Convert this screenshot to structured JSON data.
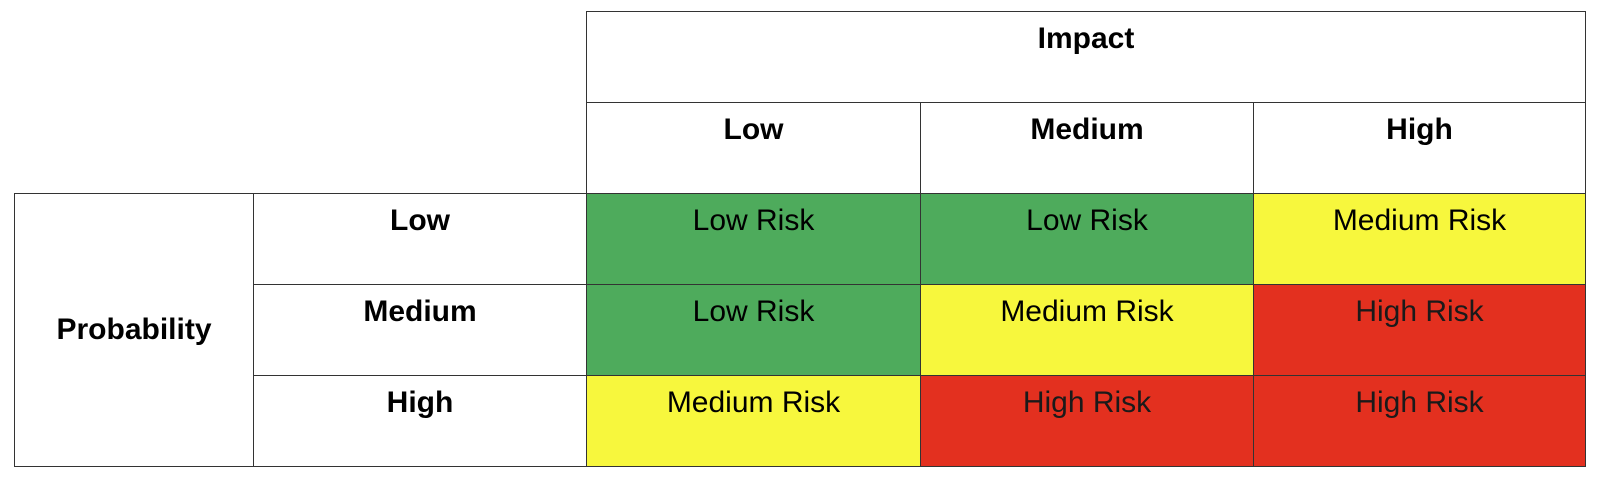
{
  "matrix": {
    "column_group_header": "Impact",
    "row_group_header": "Probability",
    "columns": [
      "Low",
      "Medium",
      "High"
    ],
    "rows": [
      "Low",
      "Medium",
      "High"
    ],
    "cells": [
      [
        "Low Risk",
        "Low Risk",
        "Medium Risk"
      ],
      [
        "Low Risk",
        "Medium Risk",
        "High Risk"
      ],
      [
        "Medium Risk",
        "High Risk",
        "High Risk"
      ]
    ],
    "colors": {
      "low": "#4eab5c",
      "medium": "#f7f73d",
      "high": "#e3301f"
    }
  }
}
